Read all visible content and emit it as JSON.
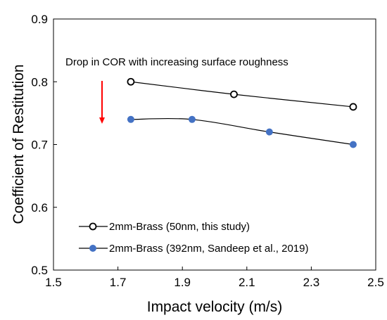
{
  "chart_data": {
    "type": "line",
    "title": "",
    "xlabel": "Impact velocity (m/s)",
    "ylabel": "Coefficient of Restitution",
    "xlim": [
      1.5,
      2.5
    ],
    "ylim": [
      0.5,
      0.9
    ],
    "x_ticks": [
      1.5,
      1.7,
      1.9,
      2.1,
      2.3,
      2.5
    ],
    "x_tick_labels": [
      "1.5",
      "1.7",
      "1.9",
      "2.1",
      "2.3",
      "2.5"
    ],
    "y_ticks": [
      0.5,
      0.6,
      0.7,
      0.8,
      0.9
    ],
    "y_tick_labels": [
      "0.5",
      "0.6",
      "0.7",
      "0.8",
      "0.9"
    ],
    "grid": false,
    "legend_position": "bottom-left",
    "series": [
      {
        "name": "2mm-Brass (50nm, this study)",
        "marker": "hollow-circle",
        "color": "#000000",
        "points": [
          {
            "x": 1.74,
            "y": 0.8
          },
          {
            "x": 2.06,
            "y": 0.78
          },
          {
            "x": 2.43,
            "y": 0.76
          }
        ]
      },
      {
        "name": "2mm-Brass (392nm, Sandeep et al., 2019)",
        "marker": "filled-circle",
        "color": "#4472C4",
        "points": [
          {
            "x": 1.74,
            "y": 0.74
          },
          {
            "x": 1.93,
            "y": 0.74
          },
          {
            "x": 2.17,
            "y": 0.72
          },
          {
            "x": 2.43,
            "y": 0.7
          }
        ]
      }
    ],
    "annotation": {
      "text": "Drop in COR with increasing surface roughness",
      "arrow_color": "#FF0000",
      "arrow_direction": "down"
    }
  }
}
